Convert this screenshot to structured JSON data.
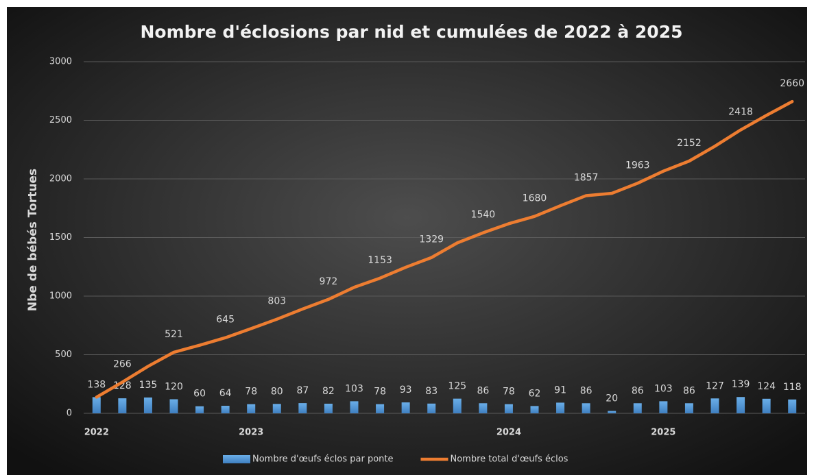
{
  "chart_data": {
    "type": "bar-line",
    "title": "Nombre d'éclosions par nid et cumulées de 2022 à 2025",
    "y_label": "Nbe de bébés Tortues",
    "categories": [
      "2022",
      null,
      null,
      null,
      null,
      null,
      "2023",
      null,
      null,
      null,
      null,
      null,
      null,
      null,
      null,
      null,
      "2024",
      null,
      null,
      null,
      null,
      null,
      "2025",
      null,
      null,
      null,
      null,
      null
    ],
    "series": [
      {
        "name": "Nombre d'œufs éclos par ponte",
        "type": "bar",
        "color": "#5b9bd5",
        "values": [
          138,
          128,
          135,
          120,
          60,
          64,
          78,
          80,
          87,
          82,
          103,
          78,
          93,
          83,
          125,
          86,
          78,
          62,
          91,
          86,
          20,
          86,
          103,
          86,
          127,
          139,
          124,
          118
        ]
      },
      {
        "name": "Nombre total d'œufs éclos",
        "type": "line",
        "color": "#ed7d31",
        "values": [
          138,
          266,
          401,
          521,
          581,
          645,
          723,
          803,
          890,
          972,
          1075,
          1153,
          1246,
          1329,
          1454,
          1540,
          1618,
          1680,
          1771,
          1857,
          1877,
          1963,
          2066,
          2152,
          2279,
          2418,
          2542,
          2660
        ],
        "value_labels": [
          null,
          "266",
          null,
          "521",
          null,
          "645",
          null,
          "803",
          null,
          "972",
          null,
          "1153",
          null,
          "1329",
          null,
          "1540",
          null,
          "1680",
          null,
          "1857",
          null,
          "1963",
          null,
          "2152",
          null,
          "2418",
          null,
          "2660"
        ]
      }
    ],
    "ylim": [
      0,
      3000
    ],
    "yticks": [
      0,
      500,
      1000,
      1500,
      2000,
      2500,
      3000
    ],
    "grid": true,
    "legend": "bottom"
  }
}
